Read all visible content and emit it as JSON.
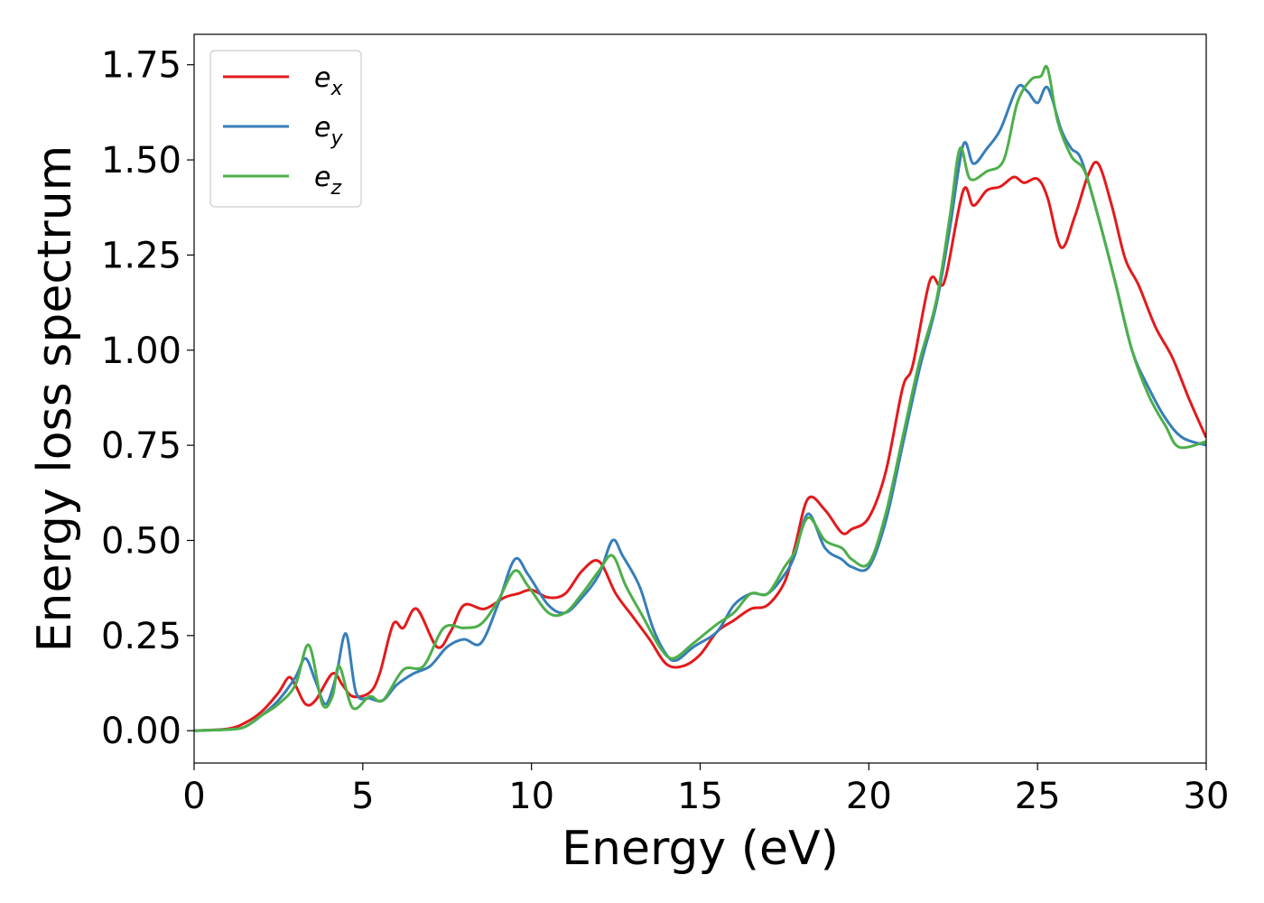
{
  "chart_data": {
    "type": "line",
    "title": "",
    "xlabel": "Energy (eV)",
    "ylabel": "Energy loss spectrum",
    "xlim": [
      0,
      30
    ],
    "ylim": [
      -0.085,
      1.83
    ],
    "xticks": [
      0,
      5,
      10,
      15,
      20,
      25,
      30
    ],
    "xtick_labels": [
      "0",
      "5",
      "10",
      "15",
      "20",
      "25",
      "30"
    ],
    "yticks": [
      0.0,
      0.25,
      0.5,
      0.75,
      1.0,
      1.25,
      1.5,
      1.75
    ],
    "ytick_labels": [
      "0.00",
      "0.25",
      "0.50",
      "0.75",
      "1.00",
      "1.25",
      "1.50",
      "1.75"
    ],
    "grid": false,
    "legend_position": "top-left",
    "series": [
      {
        "name": "e",
        "subscript": "x",
        "color": "#e31a1c",
        "points": [
          [
            0,
            0
          ],
          [
            1,
            0.005
          ],
          [
            1.5,
            0.02
          ],
          [
            2,
            0.05
          ],
          [
            2.5,
            0.1
          ],
          [
            2.8,
            0.14
          ],
          [
            3,
            0.12
          ],
          [
            3.3,
            0.07
          ],
          [
            3.6,
            0.08
          ],
          [
            4.1,
            0.15
          ],
          [
            4.4,
            0.12
          ],
          [
            4.7,
            0.09
          ],
          [
            5.2,
            0.1
          ],
          [
            5.5,
            0.15
          ],
          [
            5.9,
            0.28
          ],
          [
            6.2,
            0.27
          ],
          [
            6.6,
            0.32
          ],
          [
            7.2,
            0.22
          ],
          [
            7.6,
            0.26
          ],
          [
            8,
            0.33
          ],
          [
            8.6,
            0.32
          ],
          [
            9.2,
            0.35
          ],
          [
            9.6,
            0.36
          ],
          [
            10,
            0.37
          ],
          [
            10.5,
            0.35
          ],
          [
            11,
            0.36
          ],
          [
            11.5,
            0.42
          ],
          [
            12,
            0.445
          ],
          [
            12.5,
            0.36
          ],
          [
            13,
            0.3
          ],
          [
            13.5,
            0.24
          ],
          [
            14,
            0.175
          ],
          [
            14.5,
            0.17
          ],
          [
            15,
            0.2
          ],
          [
            15.5,
            0.26
          ],
          [
            16,
            0.29
          ],
          [
            16.5,
            0.32
          ],
          [
            17,
            0.33
          ],
          [
            17.5,
            0.39
          ],
          [
            17.8,
            0.48
          ],
          [
            18.2,
            0.61
          ],
          [
            18.7,
            0.58
          ],
          [
            19.2,
            0.52
          ],
          [
            19.5,
            0.53
          ],
          [
            20,
            0.56
          ],
          [
            20.5,
            0.68
          ],
          [
            21,
            0.9
          ],
          [
            21.3,
            0.96
          ],
          [
            21.8,
            1.18
          ],
          [
            22.1,
            1.17
          ],
          [
            22.3,
            1.2
          ],
          [
            22.8,
            1.42
          ],
          [
            23.1,
            1.38
          ],
          [
            23.5,
            1.42
          ],
          [
            23.9,
            1.43
          ],
          [
            24.3,
            1.455
          ],
          [
            24.6,
            1.44
          ],
          [
            25,
            1.45
          ],
          [
            25.3,
            1.4
          ],
          [
            25.7,
            1.27
          ],
          [
            26.1,
            1.35
          ],
          [
            26.5,
            1.46
          ],
          [
            26.8,
            1.49
          ],
          [
            27.2,
            1.38
          ],
          [
            27.6,
            1.24
          ],
          [
            28,
            1.17
          ],
          [
            28.5,
            1.06
          ],
          [
            29,
            0.98
          ],
          [
            29.5,
            0.87
          ],
          [
            30,
            0.77
          ]
        ]
      },
      {
        "name": "e",
        "subscript": "y",
        "color": "#377eb8",
        "points": [
          [
            0,
            0
          ],
          [
            1,
            0.003
          ],
          [
            1.5,
            0.01
          ],
          [
            2,
            0.04
          ],
          [
            2.5,
            0.08
          ],
          [
            3,
            0.14
          ],
          [
            3.3,
            0.19
          ],
          [
            3.6,
            0.13
          ],
          [
            3.9,
            0.07
          ],
          [
            4.2,
            0.14
          ],
          [
            4.5,
            0.255
          ],
          [
            4.8,
            0.1
          ],
          [
            5.2,
            0.085
          ],
          [
            5.6,
            0.08
          ],
          [
            6,
            0.12
          ],
          [
            6.5,
            0.15
          ],
          [
            7,
            0.17
          ],
          [
            7.5,
            0.22
          ],
          [
            8,
            0.24
          ],
          [
            8.5,
            0.23
          ],
          [
            9,
            0.33
          ],
          [
            9.5,
            0.45
          ],
          [
            9.9,
            0.41
          ],
          [
            10.5,
            0.33
          ],
          [
            11,
            0.31
          ],
          [
            11.5,
            0.35
          ],
          [
            12,
            0.41
          ],
          [
            12.4,
            0.5
          ],
          [
            12.7,
            0.46
          ],
          [
            13.2,
            0.38
          ],
          [
            13.6,
            0.27
          ],
          [
            14,
            0.2
          ],
          [
            14.3,
            0.185
          ],
          [
            14.8,
            0.22
          ],
          [
            15.5,
            0.26
          ],
          [
            16,
            0.33
          ],
          [
            16.5,
            0.36
          ],
          [
            17,
            0.36
          ],
          [
            17.5,
            0.41
          ],
          [
            17.8,
            0.46
          ],
          [
            18.2,
            0.57
          ],
          [
            18.7,
            0.48
          ],
          [
            19.2,
            0.45
          ],
          [
            19.5,
            0.43
          ],
          [
            20,
            0.43
          ],
          [
            20.5,
            0.55
          ],
          [
            21,
            0.75
          ],
          [
            21.5,
            0.95
          ],
          [
            22,
            1.12
          ],
          [
            22.4,
            1.32
          ],
          [
            22.8,
            1.54
          ],
          [
            23.1,
            1.49
          ],
          [
            23.5,
            1.53
          ],
          [
            23.9,
            1.58
          ],
          [
            24.4,
            1.69
          ],
          [
            24.7,
            1.68
          ],
          [
            25,
            1.65
          ],
          [
            25.3,
            1.69
          ],
          [
            25.7,
            1.58
          ],
          [
            26,
            1.53
          ],
          [
            26.3,
            1.5
          ],
          [
            26.8,
            1.35
          ],
          [
            27.3,
            1.18
          ],
          [
            27.8,
            1.0
          ],
          [
            28.3,
            0.9
          ],
          [
            28.8,
            0.82
          ],
          [
            29.3,
            0.77
          ],
          [
            30,
            0.75
          ]
        ]
      },
      {
        "name": "e",
        "subscript": "z",
        "color": "#4daf4a",
        "points": [
          [
            0,
            0
          ],
          [
            1,
            0.003
          ],
          [
            1.5,
            0.01
          ],
          [
            2,
            0.04
          ],
          [
            2.5,
            0.07
          ],
          [
            3,
            0.12
          ],
          [
            3.4,
            0.225
          ],
          [
            3.8,
            0.07
          ],
          [
            4.1,
            0.09
          ],
          [
            4.3,
            0.17
          ],
          [
            4.7,
            0.06
          ],
          [
            5.2,
            0.09
          ],
          [
            5.6,
            0.08
          ],
          [
            6.2,
            0.16
          ],
          [
            6.8,
            0.17
          ],
          [
            7.4,
            0.27
          ],
          [
            8,
            0.27
          ],
          [
            8.5,
            0.28
          ],
          [
            9,
            0.34
          ],
          [
            9.5,
            0.42
          ],
          [
            9.9,
            0.38
          ],
          [
            10.5,
            0.31
          ],
          [
            11,
            0.31
          ],
          [
            11.5,
            0.36
          ],
          [
            12,
            0.42
          ],
          [
            12.4,
            0.46
          ],
          [
            12.8,
            0.38
          ],
          [
            13.3,
            0.3
          ],
          [
            13.8,
            0.22
          ],
          [
            14.2,
            0.19
          ],
          [
            14.8,
            0.23
          ],
          [
            15.5,
            0.28
          ],
          [
            16,
            0.31
          ],
          [
            16.5,
            0.36
          ],
          [
            17,
            0.36
          ],
          [
            17.5,
            0.43
          ],
          [
            17.8,
            0.47
          ],
          [
            18.2,
            0.56
          ],
          [
            18.7,
            0.5
          ],
          [
            19.2,
            0.48
          ],
          [
            19.5,
            0.45
          ],
          [
            20,
            0.44
          ],
          [
            20.5,
            0.57
          ],
          [
            21,
            0.77
          ],
          [
            21.5,
            0.97
          ],
          [
            22,
            1.13
          ],
          [
            22.4,
            1.35
          ],
          [
            22.7,
            1.53
          ],
          [
            23,
            1.45
          ],
          [
            23.5,
            1.47
          ],
          [
            24,
            1.5
          ],
          [
            24.4,
            1.65
          ],
          [
            24.8,
            1.71
          ],
          [
            25.1,
            1.72
          ],
          [
            25.3,
            1.74
          ],
          [
            25.6,
            1.6
          ],
          [
            26,
            1.51
          ],
          [
            26.4,
            1.47
          ],
          [
            26.8,
            1.35
          ],
          [
            27.3,
            1.18
          ],
          [
            27.8,
            1.0
          ],
          [
            28.3,
            0.88
          ],
          [
            28.8,
            0.8
          ],
          [
            29.2,
            0.745
          ],
          [
            30,
            0.76
          ]
        ]
      }
    ]
  }
}
